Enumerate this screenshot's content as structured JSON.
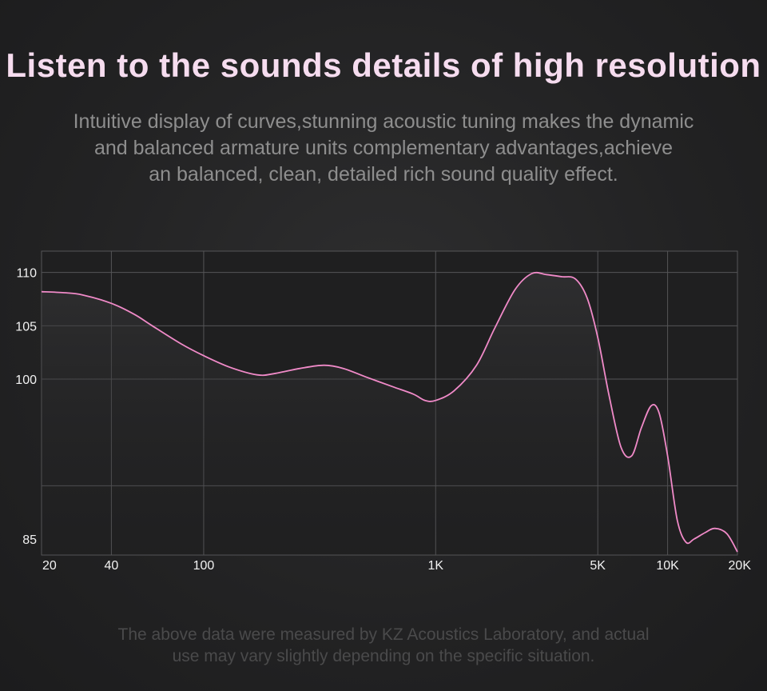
{
  "header": {
    "title": "Listen to the sounds details of high resolution",
    "subtitle_lines": [
      "Intuitive display of curves,stunning acoustic tuning makes the dynamic",
      "and balanced armature units complementary advantages,achieve",
      "an balanced, clean, detailed rich sound quality effect."
    ]
  },
  "footnote_lines": [
    "The above data were measured by KZ Acoustics Laboratory, and actual",
    "use may vary slightly depending on the specific situation."
  ],
  "colors": {
    "curve": "#f08ac8",
    "grid": "#555557",
    "plot_background": "#1f1f20",
    "title": "#f6dcef"
  },
  "chart_data": {
    "type": "line",
    "title": "",
    "xlabel": "",
    "ylabel": "",
    "x_scale": "log",
    "x_ticks": [
      {
        "value": 20,
        "label": "20"
      },
      {
        "value": 40,
        "label": "40"
      },
      {
        "value": 100,
        "label": "100"
      },
      {
        "value": 1000,
        "label": "1K"
      },
      {
        "value": 5000,
        "label": "5K"
      },
      {
        "value": 10000,
        "label": "10K"
      },
      {
        "value": 20000,
        "label": "20K"
      }
    ],
    "x_gridlines": [
      40,
      100,
      1000,
      5000,
      10000,
      20000
    ],
    "y_ticks": [
      {
        "value": 110,
        "label": "110"
      },
      {
        "value": 105,
        "label": "105"
      },
      {
        "value": 100,
        "label": "100"
      },
      {
        "value": 85,
        "label": "85"
      }
    ],
    "y_gridlines": [
      110,
      105,
      100,
      90
    ],
    "xlim": [
      20,
      20000
    ],
    "ylim": [
      83.5,
      112
    ],
    "grid": true,
    "legend": "none",
    "series": [
      {
        "x": [
          20,
          25,
          30,
          40,
          50,
          60,
          80,
          100,
          130,
          170,
          200,
          260,
          330,
          400,
          500,
          650,
          800,
          900,
          1000,
          1200,
          1500,
          1800,
          2200,
          2600,
          3000,
          3500,
          4000,
          4500,
          5000,
          5600,
          6300,
          7000,
          7700,
          8500,
          9200,
          10000,
          11000,
          12000,
          13000,
          14500,
          16000,
          18000,
          20000
        ],
        "y": [
          108.2,
          108.1,
          107.9,
          107.1,
          106.1,
          105.0,
          103.3,
          102.2,
          101.1,
          100.4,
          100.5,
          101.0,
          101.3,
          101.0,
          100.2,
          99.3,
          98.6,
          98.0,
          98.0,
          98.9,
          101.3,
          104.8,
          108.4,
          109.9,
          109.8,
          109.6,
          109.4,
          107.6,
          103.9,
          98.4,
          93.6,
          92.8,
          95.4,
          97.5,
          96.8,
          92.8,
          86.8,
          84.7,
          85.0,
          85.6,
          86.0,
          85.5,
          83.8
        ]
      }
    ]
  }
}
